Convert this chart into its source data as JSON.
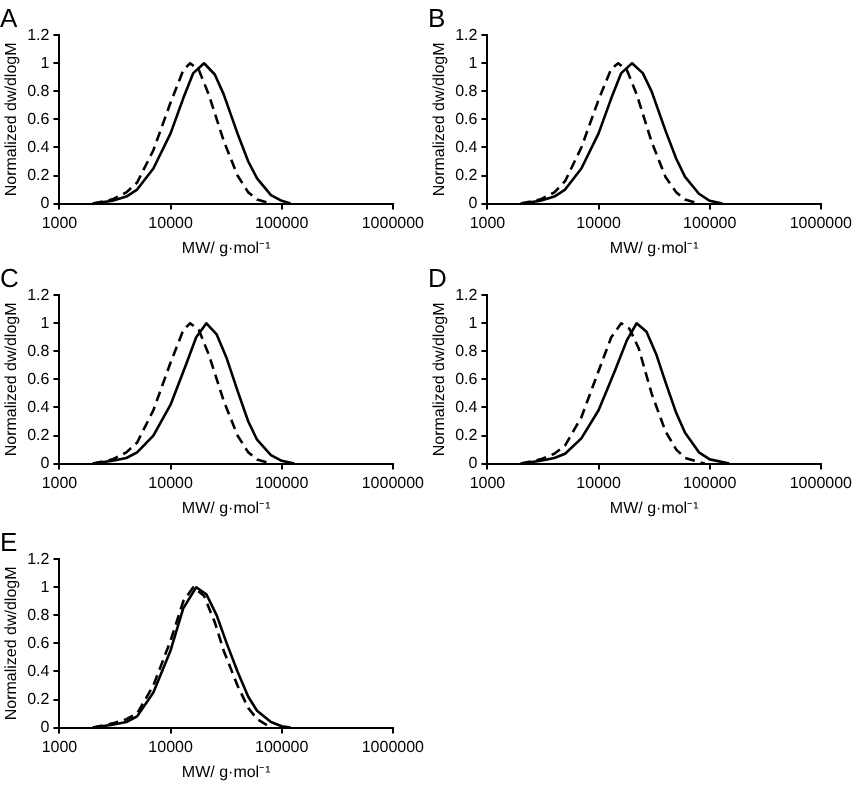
{
  "chart_data": [
    {
      "type": "line",
      "title": "A",
      "xlabel": "MW/ g·mol⁻¹",
      "ylabel": "Normalized dw/dlogM",
      "log": "x",
      "xlim": [
        1000,
        1000000
      ],
      "xticks": [
        1000,
        10000,
        100000,
        1000000
      ],
      "ylim": [
        0,
        1.2
      ],
      "yticks": [
        0,
        0.2,
        0.4,
        0.6,
        0.8,
        1,
        1.2
      ],
      "grid": false,
      "legend": false,
      "marker": "none",
      "series": [
        {
          "color": "#000000",
          "line_style": "solid",
          "x": [
            2000,
            3000,
            4000,
            5000,
            7000,
            10000,
            13000,
            16000,
            20000,
            25000,
            30000,
            40000,
            50000,
            60000,
            80000,
            100000,
            120000
          ],
          "values": [
            0,
            0.02,
            0.05,
            0.1,
            0.25,
            0.5,
            0.75,
            0.93,
            1,
            0.92,
            0.78,
            0.5,
            0.3,
            0.18,
            0.06,
            0.02,
            0
          ]
        },
        {
          "color": "#000000",
          "line_style": "dashed",
          "x": [
            2000,
            3000,
            4000,
            5000,
            7000,
            10000,
            13000,
            15000,
            18000,
            22000,
            30000,
            40000,
            50000,
            60000,
            80000
          ],
          "values": [
            0,
            0.03,
            0.08,
            0.15,
            0.38,
            0.72,
            0.95,
            1,
            0.95,
            0.78,
            0.45,
            0.2,
            0.08,
            0.03,
            0
          ]
        }
      ]
    },
    {
      "type": "line",
      "title": "B",
      "xlabel": "MW/ g·mol⁻¹",
      "ylabel": "Normalized dw/dlogM",
      "log": "x",
      "xlim": [
        1000,
        1000000
      ],
      "xticks": [
        1000,
        10000,
        100000,
        1000000
      ],
      "ylim": [
        0,
        1.2
      ],
      "yticks": [
        0,
        0.2,
        0.4,
        0.6,
        0.8,
        1,
        1.2
      ],
      "grid": false,
      "legend": false,
      "marker": "none",
      "series": [
        {
          "color": "#000000",
          "line_style": "solid",
          "x": [
            2000,
            3000,
            4000,
            5000,
            7000,
            10000,
            13000,
            16000,
            20000,
            25000,
            30000,
            40000,
            50000,
            60000,
            80000,
            100000,
            130000
          ],
          "values": [
            0,
            0.02,
            0.05,
            0.1,
            0.25,
            0.5,
            0.75,
            0.93,
            1,
            0.93,
            0.8,
            0.52,
            0.32,
            0.19,
            0.07,
            0.02,
            0
          ]
        },
        {
          "color": "#000000",
          "line_style": "dashed",
          "x": [
            2000,
            3000,
            4000,
            5000,
            7000,
            10000,
            13000,
            15000,
            18000,
            22000,
            30000,
            40000,
            50000,
            60000,
            80000
          ],
          "values": [
            0,
            0.03,
            0.08,
            0.16,
            0.4,
            0.74,
            0.96,
            1,
            0.95,
            0.78,
            0.44,
            0.19,
            0.08,
            0.03,
            0
          ]
        }
      ]
    },
    {
      "type": "line",
      "title": "C",
      "xlabel": "MW/ g·mol⁻¹",
      "ylabel": "Normalized dw/dlogM",
      "log": "x",
      "xlim": [
        1000,
        1000000
      ],
      "xticks": [
        1000,
        10000,
        100000,
        1000000
      ],
      "ylim": [
        0,
        1.2
      ],
      "yticks": [
        0,
        0.2,
        0.4,
        0.6,
        0.8,
        1,
        1.2
      ],
      "grid": false,
      "legend": false,
      "marker": "none",
      "series": [
        {
          "color": "#000000",
          "line_style": "solid",
          "x": [
            2000,
            3000,
            4000,
            5000,
            7000,
            10000,
            14000,
            17000,
            21000,
            26000,
            32000,
            40000,
            50000,
            60000,
            80000,
            100000,
            130000
          ],
          "values": [
            0,
            0.02,
            0.04,
            0.08,
            0.2,
            0.42,
            0.72,
            0.9,
            1,
            0.92,
            0.75,
            0.52,
            0.3,
            0.17,
            0.06,
            0.02,
            0
          ]
        },
        {
          "color": "#000000",
          "line_style": "dashed",
          "x": [
            2000,
            3000,
            4000,
            5000,
            7000,
            10000,
            13000,
            15000,
            18000,
            22000,
            30000,
            40000,
            50000,
            60000,
            80000
          ],
          "values": [
            0,
            0.03,
            0.08,
            0.15,
            0.38,
            0.72,
            0.95,
            1,
            0.95,
            0.78,
            0.45,
            0.2,
            0.08,
            0.03,
            0
          ]
        }
      ]
    },
    {
      "type": "line",
      "title": "D",
      "xlabel": "MW/ g·mol⁻¹",
      "ylabel": "Normalized dw/dlogM",
      "log": "x",
      "xlim": [
        1000,
        1000000
      ],
      "xticks": [
        1000,
        10000,
        100000,
        1000000
      ],
      "ylim": [
        0,
        1.2
      ],
      "yticks": [
        0,
        0.2,
        0.4,
        0.6,
        0.8,
        1,
        1.2
      ],
      "grid": false,
      "legend": false,
      "marker": "none",
      "series": [
        {
          "color": "#000000",
          "line_style": "solid",
          "x": [
            2000,
            3000,
            4000,
            5000,
            7000,
            10000,
            14000,
            18000,
            22000,
            27000,
            33000,
            40000,
            50000,
            60000,
            80000,
            100000,
            150000
          ],
          "values": [
            0,
            0.02,
            0.04,
            0.07,
            0.18,
            0.38,
            0.66,
            0.88,
            1,
            0.94,
            0.78,
            0.58,
            0.36,
            0.22,
            0.08,
            0.03,
            0
          ]
        },
        {
          "color": "#000000",
          "line_style": "dashed",
          "x": [
            2000,
            3000,
            4000,
            5000,
            7000,
            10000,
            13000,
            16000,
            19000,
            23000,
            30000,
            40000,
            50000,
            60000,
            90000
          ],
          "values": [
            0,
            0.03,
            0.07,
            0.13,
            0.33,
            0.66,
            0.9,
            1,
            0.96,
            0.82,
            0.5,
            0.23,
            0.1,
            0.04,
            0
          ]
        }
      ]
    },
    {
      "type": "line",
      "title": "E",
      "xlabel": "MW/ g·mol⁻¹",
      "ylabel": "Normalized dw/dlogM",
      "log": "x",
      "xlim": [
        1000,
        1000000
      ],
      "xticks": [
        1000,
        10000,
        100000,
        1000000
      ],
      "ylim": [
        0,
        1.2
      ],
      "yticks": [
        0,
        0.2,
        0.4,
        0.6,
        0.8,
        1,
        1.2
      ],
      "grid": false,
      "legend": false,
      "marker": "none",
      "series": [
        {
          "color": "#000000",
          "line_style": "solid",
          "x": [
            2000,
            3000,
            4000,
            5000,
            7000,
            10000,
            13000,
            17000,
            21000,
            26000,
            32000,
            40000,
            50000,
            60000,
            80000,
            100000,
            120000
          ],
          "values": [
            0,
            0.02,
            0.04,
            0.08,
            0.25,
            0.55,
            0.85,
            1,
            0.95,
            0.8,
            0.6,
            0.4,
            0.22,
            0.12,
            0.04,
            0.01,
            0
          ]
        },
        {
          "color": "#000000",
          "line_style": "dashed",
          "x": [
            2000,
            3000,
            4000,
            5000,
            7000,
            10000,
            13000,
            16000,
            20000,
            25000,
            30000,
            40000,
            50000,
            60000,
            80000
          ],
          "values": [
            0,
            0.03,
            0.06,
            0.1,
            0.3,
            0.62,
            0.9,
            1,
            0.94,
            0.75,
            0.55,
            0.3,
            0.14,
            0.06,
            0
          ]
        }
      ]
    }
  ]
}
